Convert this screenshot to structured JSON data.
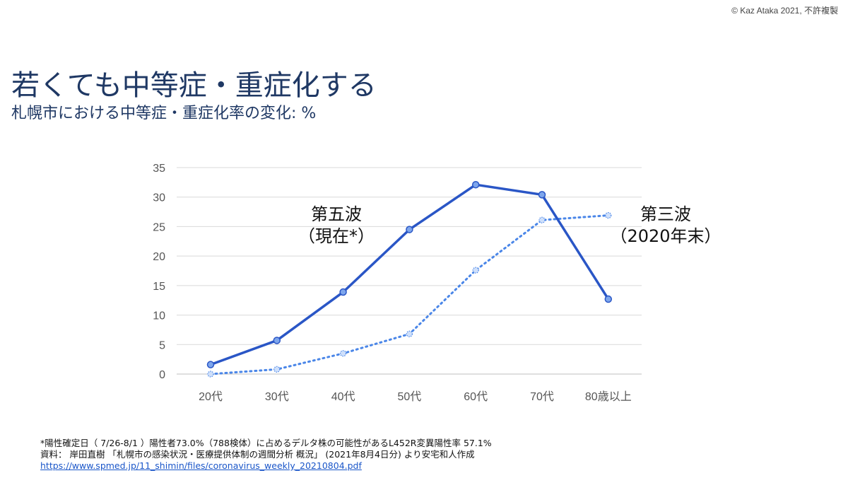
{
  "copyright": "© Kaz Ataka 2021, 不許複製",
  "title": "若くても中等症・重症化する",
  "subtitle": "札幌市における中等症・重症化率の変化: %",
  "colors": {
    "current": "#2a56c6",
    "previous": "#4a86e8",
    "title": "#1f3864"
  },
  "chart_data": {
    "type": "line",
    "categories": [
      "20代",
      "30代",
      "40代",
      "50代",
      "60代",
      "70代",
      "80歳以上"
    ],
    "ylim": [
      0,
      35
    ],
    "yticks": [
      0,
      5,
      10,
      15,
      20,
      25,
      30,
      35
    ],
    "grid": true,
    "series": [
      {
        "name_lines": [
          "第五波",
          "（現在*）"
        ],
        "style": "solid",
        "values": [
          1.6,
          5.7,
          13.9,
          24.5,
          32.1,
          30.4,
          12.7
        ]
      },
      {
        "name_lines": [
          "第三波",
          "（2020年末）"
        ],
        "style": "dotted",
        "values": [
          0.0,
          0.8,
          3.5,
          6.8,
          17.6,
          26.1,
          26.9
        ]
      }
    ]
  },
  "footnotes": {
    "note": "*陽性確定日（ 7/26-8/1 ）陽性者73.0%（788検体）に占めるデルタ株の可能性があるL452R変異陽性率 57.1%",
    "source": "資料： 岸田直樹 「札幌市の感染状況・医療提供体制の週間分析  概況」 (2021年8月4日分) より安宅和人作成",
    "url": "https://www.spmed.jp/11_shimin/files/coronavirus_weekly_20210804.pdf"
  }
}
